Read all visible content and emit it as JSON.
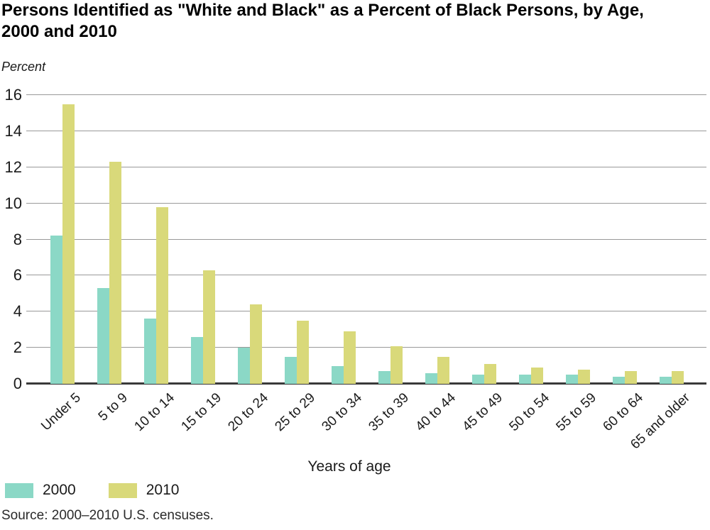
{
  "header": {
    "title": "Persons Identified as \"White and Black\" as a Percent of Black Persons, by Age,\n2000 and 2010",
    "y_axis_unit_label": "Percent"
  },
  "chart_data": {
    "type": "bar",
    "title": "Persons Identified as \"White and Black\" as a Percent of Black Persons, by Age, 2000 and 2010",
    "categories": [
      "Under 5",
      "5 to 9",
      "10 to 14",
      "15 to 19",
      "20 to 24",
      "25 to 29",
      "30 to 34",
      "35 to 39",
      "40 to 44",
      "45 to 49",
      "50 to 54",
      "55 to 59",
      "60 to 64",
      "65 and older"
    ],
    "series": [
      {
        "name": "2000",
        "color": "#8BD8C6",
        "values": [
          8.2,
          5.3,
          3.6,
          2.6,
          2.0,
          1.5,
          1.0,
          0.7,
          0.6,
          0.5,
          0.5,
          0.5,
          0.4,
          0.4
        ]
      },
      {
        "name": "2010",
        "color": "#D9D97A",
        "values": [
          15.5,
          12.3,
          9.8,
          6.3,
          4.4,
          3.5,
          2.9,
          2.1,
          1.5,
          1.1,
          0.9,
          0.8,
          0.7,
          0.7
        ]
      }
    ],
    "xlabel": "Years of age",
    "ylabel": "Percent",
    "ylim": [
      0,
      16
    ],
    "yticks": [
      0,
      2,
      4,
      6,
      8,
      10,
      12,
      14,
      16
    ],
    "grid": "horizontal-gridlines-on",
    "legend_position": "bottom-left",
    "gridline_color": "#999999",
    "axis_line_color": "#3A3A3A"
  },
  "footer": {
    "source": "Source: 2000–2010 U.S. censuses."
  }
}
